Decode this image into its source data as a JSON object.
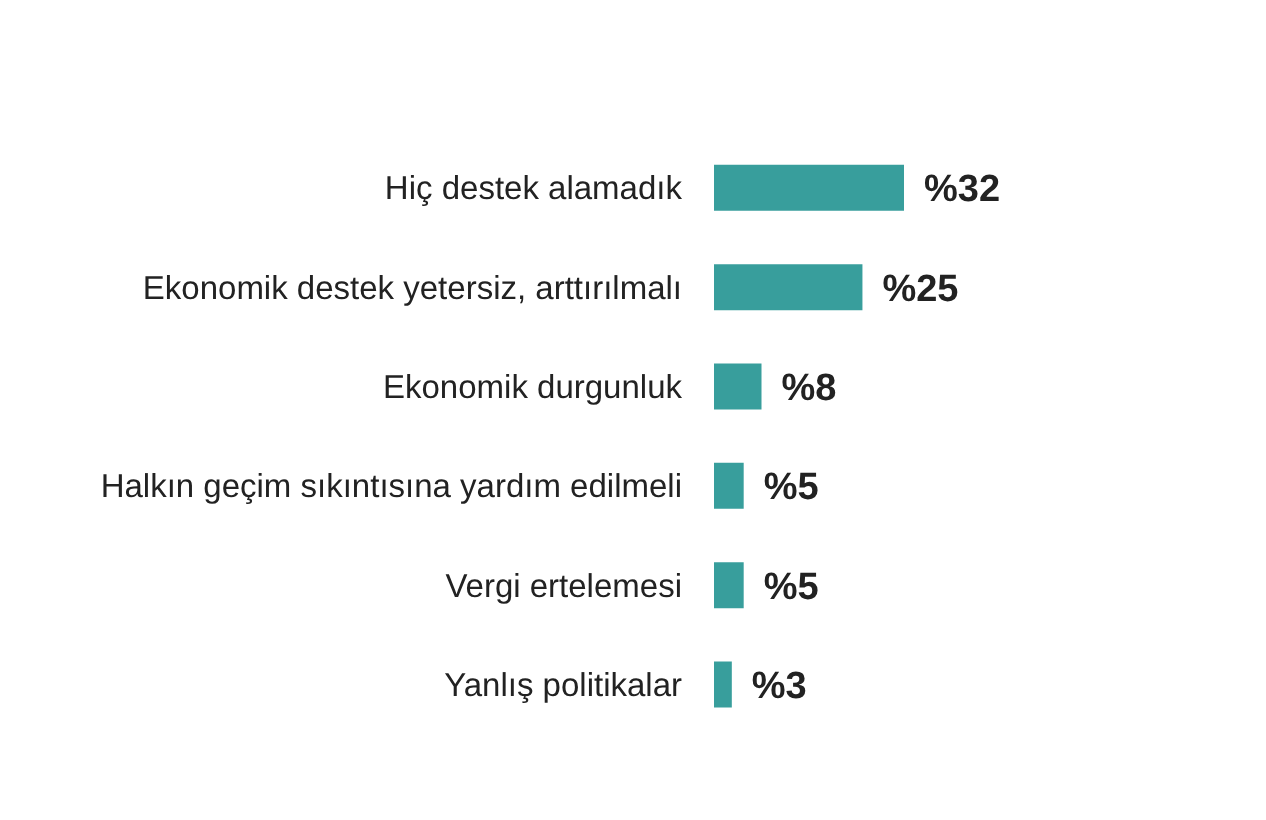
{
  "chart_data": {
    "type": "bar",
    "orientation": "horizontal",
    "categories": [
      "Hiç destek alamadık",
      "Ekonomik destek yetersiz, arttırılmalı",
      "Ekonomik durgunluk",
      "Halkın geçim sıkıntısına yardım edilmeli",
      "Vergi ertelemesi",
      "Yanlış politikalar"
    ],
    "values": [
      32,
      25,
      8,
      5,
      5,
      3
    ],
    "value_labels": [
      "%32",
      "%25",
      "%8",
      "%5",
      "%5",
      "%3"
    ],
    "color": "#389e9c",
    "grid": false,
    "legend": false
  }
}
